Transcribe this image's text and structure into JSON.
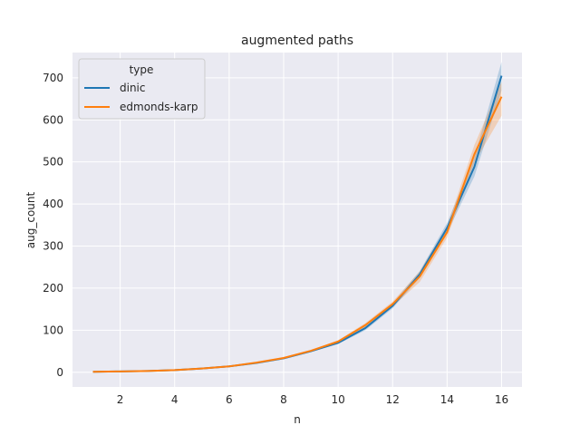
{
  "chart_data": {
    "type": "line",
    "title": "augmented paths",
    "xlabel": "n",
    "ylabel": "aug_count",
    "xlim": [
      0.25,
      16.75
    ],
    "ylim": [
      -35,
      760
    ],
    "xticks": [
      2,
      4,
      6,
      8,
      10,
      12,
      14,
      16
    ],
    "yticks": [
      0,
      100,
      200,
      300,
      400,
      500,
      600,
      700
    ],
    "grid": true,
    "legend": {
      "title": "type",
      "placement": "top-left"
    },
    "x": [
      1,
      2,
      3,
      4,
      5,
      6,
      7,
      8,
      9,
      10,
      11,
      12,
      13,
      14,
      15,
      16
    ],
    "series": [
      {
        "name": "dinic",
        "color": "#1f77b4",
        "values": [
          1,
          2,
          3,
          5,
          9,
          14,
          22,
          33,
          50,
          70,
          105,
          158,
          233,
          343,
          488,
          705
        ],
        "lower": [
          0,
          1,
          2,
          4,
          8,
          13,
          21,
          31,
          48,
          67,
          100,
          152,
          225,
          332,
          465,
          670
        ],
        "upper": [
          2,
          3,
          4,
          6,
          10,
          15,
          23,
          35,
          52,
          73,
          110,
          164,
          241,
          355,
          510,
          738
        ]
      },
      {
        "name": "edmonds-karp",
        "color": "#ff7f0e",
        "values": [
          1,
          2,
          3,
          5,
          9,
          14,
          23,
          34,
          51,
          73,
          112,
          162,
          228,
          333,
          518,
          655
        ],
        "lower": [
          0,
          1,
          2,
          4,
          8,
          13,
          22,
          32,
          49,
          70,
          107,
          156,
          215,
          320,
          498,
          610
        ],
        "upper": [
          2,
          3,
          4,
          6,
          10,
          15,
          24,
          36,
          53,
          76,
          117,
          168,
          240,
          347,
          540,
          690
        ]
      }
    ]
  }
}
